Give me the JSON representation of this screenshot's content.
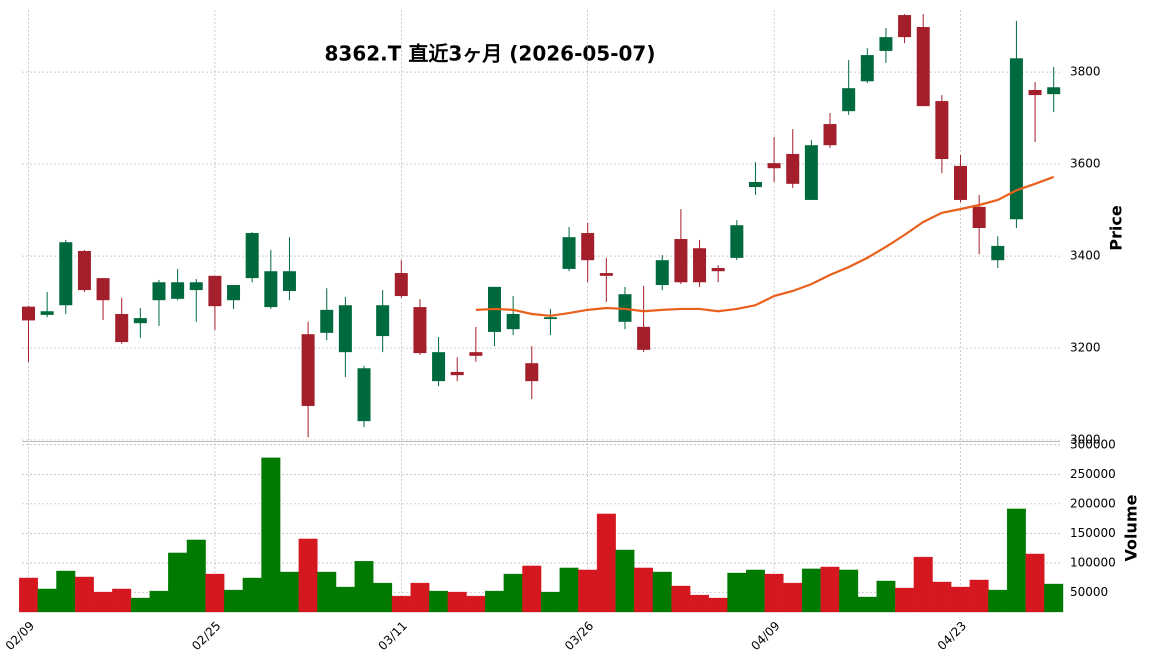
{
  "chart_data": {
    "type": "candlestick",
    "title": "8362.T 直近3ヶ月 (2026-05-07)",
    "categories": [
      "02/09",
      null,
      null,
      null,
      null,
      null,
      null,
      null,
      null,
      null,
      "02/25",
      null,
      null,
      null,
      null,
      null,
      null,
      null,
      null,
      null,
      "03/11",
      null,
      null,
      null,
      null,
      null,
      null,
      null,
      null,
      null,
      "03/26",
      null,
      null,
      null,
      null,
      null,
      null,
      null,
      null,
      null,
      "04/09",
      null,
      null,
      null,
      null,
      null,
      null,
      null,
      null,
      null,
      "04/23",
      null,
      null,
      null,
      null,
      null
    ],
    "open": [
      3290,
      3272,
      3293,
      3411,
      3352,
      3274,
      3254,
      3304,
      3307,
      3326,
      3357,
      3304,
      3352,
      3289,
      3324,
      3230,
      3233,
      3191,
      3041,
      3226,
      3363,
      3289,
      3128,
      3148,
      3191,
      3235,
      3241,
      3167,
      3263,
      3372,
      3450,
      3363,
      3257,
      3246,
      3337,
      3437,
      3417,
      3374,
      3396,
      3550,
      3602,
      3622,
      3522,
      3687,
      3715,
      3780,
      3846,
      3924,
      3898,
      3737,
      3596,
      3507,
      3391,
      3480,
      3761,
      3752
    ],
    "high": [
      3292,
      3322,
      3435,
      3413,
      3352,
      3309,
      3287,
      3348,
      3372,
      3350,
      3357,
      3337,
      3452,
      3413,
      3441,
      3257,
      3330,
      3311,
      3161,
      3326,
      3391,
      3306,
      3224,
      3180,
      3246,
      3333,
      3313,
      3204,
      3285,
      3463,
      3472,
      3396,
      3333,
      3335,
      3402,
      3502,
      3435,
      3380,
      3478,
      3604,
      3659,
      3676,
      3652,
      3711,
      3826,
      3852,
      3896,
      3926,
      3926,
      3750,
      3620,
      3533,
      3443,
      3911,
      3778,
      3811
    ],
    "low": [
      3170,
      3267,
      3274,
      3322,
      3261,
      3209,
      3222,
      3248,
      3304,
      3257,
      3239,
      3285,
      3343,
      3285,
      3304,
      3006,
      3217,
      3137,
      3028,
      3191,
      3309,
      3185,
      3117,
      3128,
      3170,
      3204,
      3228,
      3089,
      3228,
      3367,
      3343,
      3300,
      3241,
      3191,
      3326,
      3339,
      3333,
      3343,
      3391,
      3533,
      3561,
      3548,
      3522,
      3635,
      3707,
      3776,
      3820,
      3863,
      3726,
      3580,
      3517,
      3404,
      3374,
      3461,
      3648,
      3713
    ],
    "close": [
      3260,
      3280,
      3430,
      3326,
      3304,
      3213,
      3265,
      3343,
      3343,
      3343,
      3291,
      3337,
      3450,
      3367,
      3367,
      3074,
      3283,
      3293,
      3156,
      3293,
      3313,
      3189,
      3191,
      3141,
      3183,
      3333,
      3274,
      3128,
      3267,
      3441,
      3391,
      3357,
      3317,
      3196,
      3391,
      3343,
      3343,
      3367,
      3467,
      3561,
      3591,
      3557,
      3641,
      3641,
      3765,
      3837,
      3876,
      3876,
      3726,
      3611,
      3522,
      3461,
      3422,
      3830,
      3750,
      3767
    ],
    "up_color": "#006a3e",
    "down_color": "#a31f2b",
    "ylabel": "Price",
    "ylim": [
      3000,
      3935
    ],
    "yticks": [
      3000,
      3200,
      3400,
      3600,
      3800
    ],
    "grid": true,
    "moving_average": {
      "color": "#e8601c",
      "values": [
        null,
        null,
        null,
        null,
        null,
        null,
        null,
        null,
        null,
        null,
        null,
        null,
        null,
        null,
        null,
        null,
        null,
        null,
        null,
        null,
        null,
        null,
        null,
        null,
        3283,
        3285,
        3283,
        3274,
        3270,
        3276,
        3283,
        3287,
        3285,
        3280,
        3283,
        3285,
        3285,
        3280,
        3285,
        3293,
        3313,
        3324,
        3339,
        3359,
        3376,
        3396,
        3420,
        3446,
        3474,
        3494,
        3502,
        3511,
        3522,
        3543,
        3557,
        3572
      ]
    },
    "volume": {
      "ylabel": "Volume",
      "up_color": "#007a00",
      "down_color": "#d51720",
      "ylim": [
        17000,
        303000
      ],
      "yticks": [
        50000,
        100000,
        150000,
        200000,
        250000,
        300000
      ],
      "values": [
        74600,
        56000,
        86400,
        76300,
        50800,
        56000,
        40700,
        52500,
        117000,
        139000,
        81300,
        54200,
        74600,
        278000,
        84700,
        140700,
        84700,
        59300,
        103000,
        66000,
        44000,
        66000,
        52500,
        50800,
        44000,
        52500,
        81300,
        95000,
        50800,
        91600,
        88200,
        183000,
        122000,
        91600,
        84700,
        61000,
        45700,
        40700,
        83000,
        88200,
        81300,
        66000,
        90000,
        93200,
        88200,
        42400,
        69500,
        57600,
        110000,
        67800,
        59300,
        71200,
        54200,
        191500,
        115200,
        64400
      ]
    }
  }
}
